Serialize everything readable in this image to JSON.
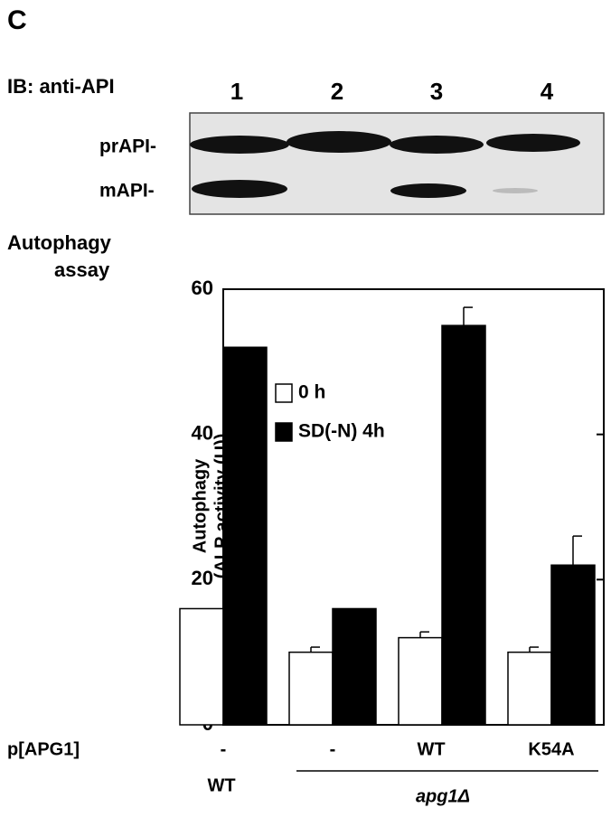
{
  "panel_label": "C",
  "blot": {
    "title": "IB: anti-API",
    "lanes": [
      "1",
      "2",
      "3",
      "4"
    ],
    "rows": [
      "prAPI-",
      "mAPI-"
    ]
  },
  "assay_label": [
    "Autophagy",
    "assay"
  ],
  "chart_data": {
    "type": "bar",
    "y_label": [
      "Autophagy",
      "(ALP activity (U))"
    ],
    "category_axis_label": "p[APG1]",
    "categories": [
      "-",
      "-",
      "WT",
      "K54A"
    ],
    "strain_labels": [
      "WT",
      "apg1Δ"
    ],
    "series": [
      {
        "name": "0 h",
        "color": "#ffffff",
        "values": [
          16,
          10,
          12,
          10
        ],
        "errors": [
          null,
          0.7,
          0.8,
          0.7
        ]
      },
      {
        "name": "SD(-N) 4h",
        "color": "#000000",
        "values": [
          52,
          16,
          55,
          22
        ],
        "errors": [
          null,
          null,
          2.5,
          4
        ]
      }
    ],
    "ylim": [
      0,
      60
    ],
    "yticks": [
      0,
      20,
      40,
      60
    ]
  }
}
